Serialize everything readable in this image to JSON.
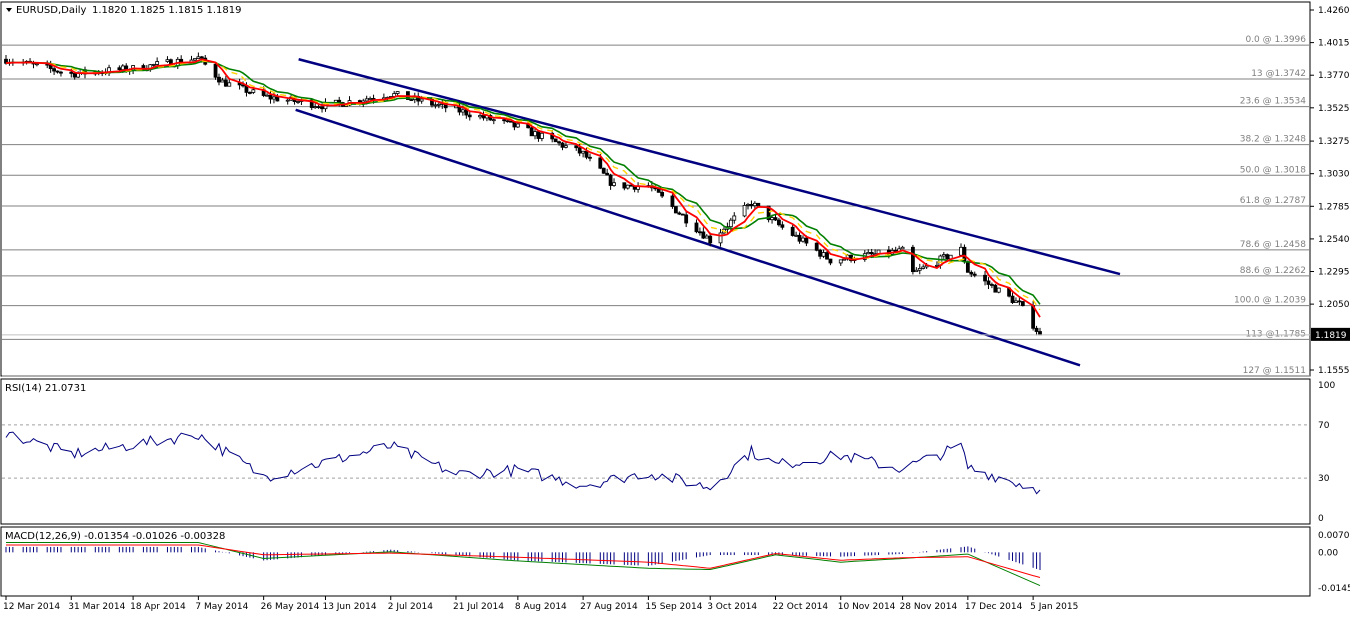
{
  "header": {
    "symbol_label": "EURUSD,Daily",
    "ohlc": "1.1820 1.1825 1.1815 1.1819"
  },
  "price_panel": {
    "y_ticks": [
      "1.4260",
      "1.4015",
      "1.3770",
      "1.3525",
      "1.3275",
      "1.3030",
      "1.2785",
      "1.2540",
      "1.2295",
      "1.2050",
      "1.1555"
    ],
    "current_price_label": "1.1819",
    "fib_levels": [
      {
        "label": "0.0 @ 1.3996",
        "value": 1.3996
      },
      {
        "label": "13 @1.3742",
        "value": 1.3742
      },
      {
        "label": "23.6 @ 1.3534",
        "value": 1.3534
      },
      {
        "label": "38.2 @ 1.3248",
        "value": 1.3248
      },
      {
        "label": "50.0 @ 1.3018",
        "value": 1.3018
      },
      {
        "label": "61.8 @ 1.2787",
        "value": 1.2787
      },
      {
        "label": "78.6 @ 1.2458",
        "value": 1.2458
      },
      {
        "label": "88.6 @ 1.2262",
        "value": 1.2262
      },
      {
        "label": "100.0 @ 1.2039",
        "value": 1.2039
      },
      {
        "label": "113 @1.1785",
        "value": 1.1785
      },
      {
        "label": "127 @ 1.1511",
        "value": 1.1511
      }
    ]
  },
  "rsi_panel": {
    "label": "RSI(14) 21.0731",
    "y_ticks": [
      "100",
      "70",
      "30",
      "0"
    ]
  },
  "macd_panel": {
    "label": "MACD(12,26,9) -0.01354 -0.01026 -0.00328",
    "y_ticks": [
      "0.00706",
      "0.00",
      "-0.01452"
    ]
  },
  "x_axis": {
    "ticks": [
      "12 Mar 2014",
      "31 Mar 2014",
      "18 Apr 2014",
      "7 May 2014",
      "26 May 2014",
      "13 Jun 2014",
      "2 Jul 2014",
      "21 Jul 2014",
      "8 Aug 2014",
      "27 Aug 2014",
      "15 Sep 2014",
      "3 Oct 2014",
      "22 Oct 2014",
      "10 Nov 2014",
      "28 Nov 2014",
      "17 Dec 2014",
      "5 Jan 2015"
    ]
  },
  "colors": {
    "bull_candle": "#ffffff",
    "bear_candle": "#000000",
    "ma_fast": "#ff0000",
    "ma_slow": "#008000",
    "ma_mid": "#ffd200",
    "channel": "#000080",
    "rsi_line": "#000080",
    "macd_hist": "#000080",
    "macd_line": "#008000",
    "macd_signal": "#ff0000",
    "fib_line": "#808080"
  },
  "chart_data": [
    {
      "type": "candlestick",
      "title": "EURUSD,Daily",
      "x_range": [
        "12 Mar 2014",
        "7 Jan 2015"
      ],
      "ylim": [
        1.1555,
        1.426
      ],
      "anchors": [
        {
          "date": "12 Mar 2014",
          "close": 1.389
        },
        {
          "date": "31 Mar 2014",
          "close": 1.378
        },
        {
          "date": "18 Apr 2014",
          "close": 1.382
        },
        {
          "date": "7 May 2014",
          "close": 1.39
        },
        {
          "date": "14 May 2014",
          "close": 1.372
        },
        {
          "date": "26 May 2014",
          "close": 1.361
        },
        {
          "date": "13 Jun 2014",
          "close": 1.354
        },
        {
          "date": "2 Jul 2014",
          "close": 1.363
        },
        {
          "date": "21 Jul 2014",
          "close": 1.351
        },
        {
          "date": "8 Aug 2014",
          "close": 1.338
        },
        {
          "date": "27 Aug 2014",
          "close": 1.318
        },
        {
          "date": "5 Sep 2014",
          "close": 1.294
        },
        {
          "date": "15 Sep 2014",
          "close": 1.294
        },
        {
          "date": "3 Oct 2014",
          "close": 1.253
        },
        {
          "date": "15 Oct 2014",
          "close": 1.281
        },
        {
          "date": "22 Oct 2014",
          "close": 1.266
        },
        {
          "date": "7 Nov 2014",
          "close": 1.238
        },
        {
          "date": "28 Nov 2014",
          "close": 1.245
        },
        {
          "date": "1 Dec 2014",
          "close": 1.228
        },
        {
          "date": "15 Dec 2014",
          "close": 1.246
        },
        {
          "date": "17 Dec 2014",
          "close": 1.23
        },
        {
          "date": "1 Jan 2015",
          "close": 1.205
        },
        {
          "date": "7 Jan 2015",
          "close": 1.1819
        }
      ]
    },
    {
      "type": "line",
      "title": "RSI(14) 21.0731",
      "ylim": [
        0,
        100
      ],
      "levels": [
        70,
        30
      ],
      "anchors": [
        {
          "date": "12 Mar 2014",
          "value": 64
        },
        {
          "date": "31 Mar 2014",
          "value": 48
        },
        {
          "date": "18 Apr 2014",
          "value": 55
        },
        {
          "date": "7 May 2014",
          "value": 63
        },
        {
          "date": "26 May 2014",
          "value": 31
        },
        {
          "date": "13 Jun 2014",
          "value": 42
        },
        {
          "date": "2 Jul 2014",
          "value": 54
        },
        {
          "date": "21 Jul 2014",
          "value": 33
        },
        {
          "date": "8 Aug 2014",
          "value": 36
        },
        {
          "date": "27 Aug 2014",
          "value": 25
        },
        {
          "date": "15 Sep 2014",
          "value": 34
        },
        {
          "date": "3 Oct 2014",
          "value": 23
        },
        {
          "date": "15 Oct 2014",
          "value": 50
        },
        {
          "date": "22 Oct 2014",
          "value": 40
        },
        {
          "date": "10 Nov 2014",
          "value": 47
        },
        {
          "date": "28 Nov 2014",
          "value": 37
        },
        {
          "date": "15 Dec 2014",
          "value": 54
        },
        {
          "date": "17 Dec 2014",
          "value": 38
        },
        {
          "date": "7 Jan 2015",
          "value": 21.0731
        }
      ]
    },
    {
      "type": "bar",
      "title": "MACD(12,26,9) -0.01354 -0.01026 -0.00328",
      "ylim": [
        -0.01452,
        0.00706
      ],
      "series": [
        {
          "name": "MACD",
          "anchors": [
            {
              "date": "12 Mar 2014",
              "value": 0.004
            },
            {
              "date": "7 May 2014",
              "value": 0.004
            },
            {
              "date": "26 May 2014",
              "value": -0.0025
            },
            {
              "date": "2 Jul 2014",
              "value": 0.0002
            },
            {
              "date": "8 Aug 2014",
              "value": -0.0035
            },
            {
              "date": "15 Sep 2014",
              "value": -0.0065
            },
            {
              "date": "3 Oct 2014",
              "value": -0.007
            },
            {
              "date": "22 Oct 2014",
              "value": -0.001
            },
            {
              "date": "10 Nov 2014",
              "value": -0.004
            },
            {
              "date": "28 Nov 2014",
              "value": -0.0025
            },
            {
              "date": "17 Dec 2014",
              "value": -0.0007
            },
            {
              "date": "7 Jan 2015",
              "value": -0.01354
            }
          ]
        },
        {
          "name": "Signal",
          "anchors": [
            {
              "date": "12 Mar 2014",
              "value": 0.003
            },
            {
              "date": "7 May 2014",
              "value": 0.003
            },
            {
              "date": "26 May 2014",
              "value": -0.001
            },
            {
              "date": "2 Jul 2014",
              "value": -0.0003
            },
            {
              "date": "8 Aug 2014",
              "value": -0.002
            },
            {
              "date": "15 Sep 2014",
              "value": -0.004
            },
            {
              "date": "3 Oct 2014",
              "value": -0.0065
            },
            {
              "date": "22 Oct 2014",
              "value": -0.0005
            },
            {
              "date": "10 Nov 2014",
              "value": -0.0032
            },
            {
              "date": "28 Nov 2014",
              "value": -0.0022
            },
            {
              "date": "17 Dec 2014",
              "value": -0.0018
            },
            {
              "date": "7 Jan 2015",
              "value": -0.01026
            }
          ]
        }
      ]
    }
  ]
}
